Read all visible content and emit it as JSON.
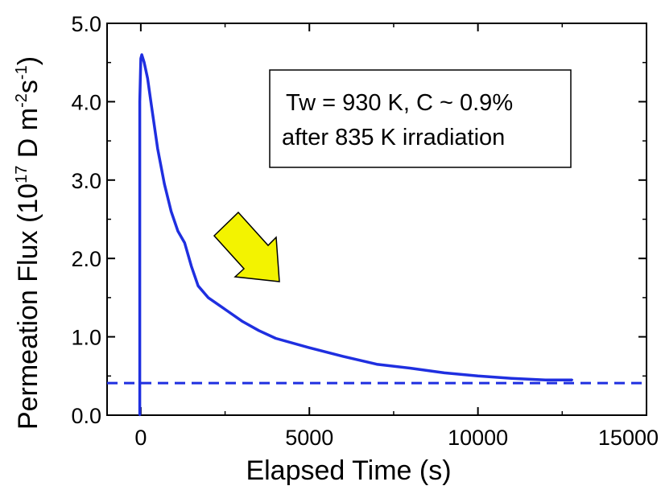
{
  "chart_data": {
    "type": "line",
    "xlabel": "Elapsed Time (s)",
    "ylabel_parts": {
      "prefix": "Permeation Flux (10",
      "exp1": "17",
      "mid1": " D m",
      "exp2": "-2",
      "mid2": "s",
      "exp3": "-1",
      "suffix": ")"
    },
    "xlim": [
      -1000,
      15000
    ],
    "ylim": [
      0,
      5
    ],
    "x_ticks": [
      {
        "value": 0,
        "label": "0"
      },
      {
        "value": 5000,
        "label": "5000"
      },
      {
        "value": 10000,
        "label": "10000"
      },
      {
        "value": 15000,
        "label": "15000"
      }
    ],
    "y_ticks": [
      {
        "value": 0,
        "label": "0.0"
      },
      {
        "value": 1,
        "label": "1.0"
      },
      {
        "value": 2,
        "label": "2.0"
      },
      {
        "value": 3,
        "label": "3.0"
      },
      {
        "value": 4,
        "label": "4.0"
      },
      {
        "value": 5,
        "label": "5.0"
      }
    ],
    "annotation": {
      "line1": "Tw = 930 K, C ~ 0.9%",
      "line2": "after 835 K irradiation"
    },
    "series": [
      {
        "color": "#1f2fe0",
        "x": [
          -30,
          -30,
          0,
          30,
          100,
          200,
          300,
          400,
          500,
          700,
          900,
          1100,
          1300,
          1500,
          1700,
          2000,
          2500,
          3000,
          3500,
          4000,
          5000,
          6000,
          7000,
          8000,
          9000,
          10000,
          11000,
          12000,
          12800
        ],
        "y": [
          0.0,
          4.0,
          4.55,
          4.6,
          4.5,
          4.3,
          4.0,
          3.7,
          3.4,
          2.95,
          2.6,
          2.35,
          2.2,
          1.9,
          1.65,
          1.5,
          1.35,
          1.2,
          1.08,
          0.98,
          0.86,
          0.75,
          0.65,
          0.6,
          0.54,
          0.5,
          0.47,
          0.45,
          0.45
        ]
      }
    ],
    "reference_line": {
      "y": 0.41,
      "style": "dashed",
      "color": "#1f2fe0"
    },
    "arrow_color": "#f3f300"
  }
}
